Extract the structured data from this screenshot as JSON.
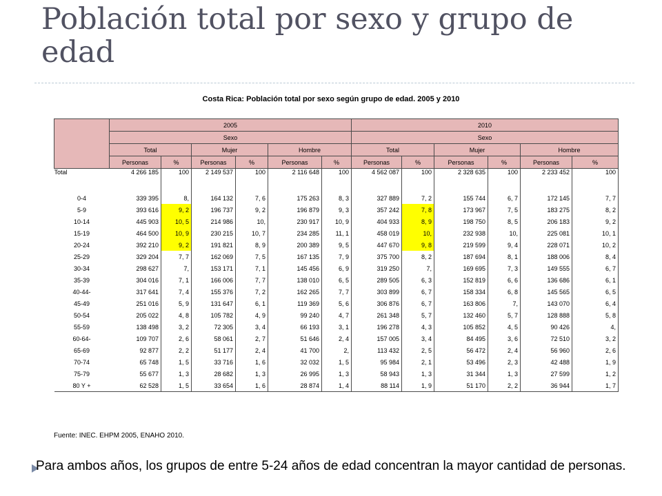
{
  "slide": {
    "title": "Población total por sexo y grupo de edad",
    "caption": "Costa Rica: Población total por sexo según grupo de edad. 2005 y 2010",
    "source": "Fuente: INEC. EHPM 2005, ENAHO 2010.",
    "footer": "Para ambos años, los grupos de entre 5-24 años de edad concentran la mayor cantidad de personas."
  },
  "table": {
    "years": [
      "2005",
      "2010"
    ],
    "sexo_label": "Sexo",
    "groups": [
      "Total",
      "Mujer",
      "Hombre"
    ],
    "subheaders": [
      "Personas",
      "%"
    ],
    "highlight_color": "#ffff00",
    "header_color": "#e6b8b8",
    "rows": [
      {
        "label": "Total",
        "cells": [
          "4 266 185",
          "100",
          "2 149 537",
          "100",
          "2 116 648",
          "100",
          "4 562 087",
          "100",
          "2 328 635",
          "100",
          "2 233 452",
          "100"
        ]
      },
      {
        "label": "0-4",
        "cells": [
          "339 395",
          "8,",
          "164 132",
          "7, 6",
          "175 263",
          "8, 3",
          "327 889",
          "7, 2",
          "155 744",
          "6, 7",
          "172 145",
          "7, 7"
        ]
      },
      {
        "label": "5-9",
        "cells": [
          "393 616",
          "9, 2",
          "196 737",
          "9, 2",
          "196 879",
          "9, 3",
          "357 242",
          "7, 8",
          "173 967",
          "7, 5",
          "183 275",
          "8, 2"
        ]
      },
      {
        "label": "10-14",
        "cells": [
          "445 903",
          "10, 5",
          "214 986",
          "10,",
          "230 917",
          "10, 9",
          "404 933",
          "8, 9",
          "198 750",
          "8, 5",
          "206 183",
          "9, 2"
        ]
      },
      {
        "label": "15-19",
        "cells": [
          "464 500",
          "10, 9",
          "230 215",
          "10, 7",
          "234 285",
          "11, 1",
          "458 019",
          "10,",
          "232 938",
          "10,",
          "225 081",
          "10, 1"
        ]
      },
      {
        "label": "20-24",
        "cells": [
          "392 210",
          "9, 2",
          "191 821",
          "8, 9",
          "200 389",
          "9, 5",
          "447 670",
          "9, 8",
          "219 599",
          "9, 4",
          "228 071",
          "10, 2"
        ]
      },
      {
        "label": "25-29",
        "cells": [
          "329 204",
          "7, 7",
          "162 069",
          "7, 5",
          "167 135",
          "7, 9",
          "375 700",
          "8, 2",
          "187 694",
          "8, 1",
          "188 006",
          "8, 4"
        ]
      },
      {
        "label": "30-34",
        "cells": [
          "298 627",
          "7,",
          "153 171",
          "7, 1",
          "145 456",
          "6, 9",
          "319 250",
          "7,",
          "169 695",
          "7, 3",
          "149 555",
          "6, 7"
        ]
      },
      {
        "label": "35-39",
        "cells": [
          "304 016",
          "7, 1",
          "166 006",
          "7, 7",
          "138 010",
          "6, 5",
          "289 505",
          "6, 3",
          "152 819",
          "6, 6",
          "136 686",
          "6, 1"
        ]
      },
      {
        "label": "40-44-",
        "cells": [
          "317 641",
          "7, 4",
          "155 376",
          "7, 2",
          "162 265",
          "7, 7",
          "303 899",
          "6, 7",
          "158 334",
          "6, 8",
          "145 565",
          "6, 5"
        ]
      },
      {
        "label": "45-49",
        "cells": [
          "251 016",
          "5, 9",
          "131 647",
          "6, 1",
          "119 369",
          "5, 6",
          "306 876",
          "6, 7",
          "163 806",
          "7,",
          "143 070",
          "6, 4"
        ]
      },
      {
        "label": "50-54",
        "cells": [
          "205 022",
          "4, 8",
          "105 782",
          "4, 9",
          "99 240",
          "4, 7",
          "261 348",
          "5, 7",
          "132 460",
          "5, 7",
          "128 888",
          "5, 8"
        ]
      },
      {
        "label": "55-59",
        "cells": [
          "138 498",
          "3, 2",
          "72 305",
          "3, 4",
          "66 193",
          "3, 1",
          "196 278",
          "4, 3",
          "105 852",
          "4, 5",
          "90 426",
          "4,"
        ]
      },
      {
        "label": "60-64-",
        "cells": [
          "109 707",
          "2, 6",
          "58 061",
          "2, 7",
          "51 646",
          "2, 4",
          "157 005",
          "3, 4",
          "84 495",
          "3, 6",
          "72 510",
          "3, 2"
        ]
      },
      {
        "label": "65-69",
        "cells": [
          "92 877",
          "2, 2",
          "51 177",
          "2, 4",
          "41 700",
          "2,",
          "113 432",
          "2, 5",
          "56 472",
          "2, 4",
          "56 960",
          "2, 6"
        ]
      },
      {
        "label": "70-74",
        "cells": [
          "65 748",
          "1, 5",
          "33 716",
          "1, 6",
          "32 032",
          "1, 5",
          "95 984",
          "2, 1",
          "53 496",
          "2, 3",
          "42 488",
          "1, 9"
        ]
      },
      {
        "label": "75-79",
        "cells": [
          "55 677",
          "1, 3",
          "28 682",
          "1, 3",
          "26 995",
          "1, 3",
          "58 943",
          "1, 3",
          "31 344",
          "1, 3",
          "27 599",
          "1, 2"
        ]
      },
      {
        "label": "80 Y +",
        "cells": [
          "62 528",
          "1, 5",
          "33 654",
          "1, 6",
          "28 874",
          "1, 4",
          "88 114",
          "1, 9",
          "51 170",
          "2, 2",
          "36 944",
          "1, 7"
        ]
      }
    ],
    "highlighted": [
      {
        "row": 2,
        "col": 1
      },
      {
        "row": 3,
        "col": 1
      },
      {
        "row": 4,
        "col": 1
      },
      {
        "row": 5,
        "col": 1
      },
      {
        "row": 2,
        "col": 7
      },
      {
        "row": 3,
        "col": 7
      },
      {
        "row": 4,
        "col": 7
      },
      {
        "row": 5,
        "col": 7
      }
    ]
  }
}
